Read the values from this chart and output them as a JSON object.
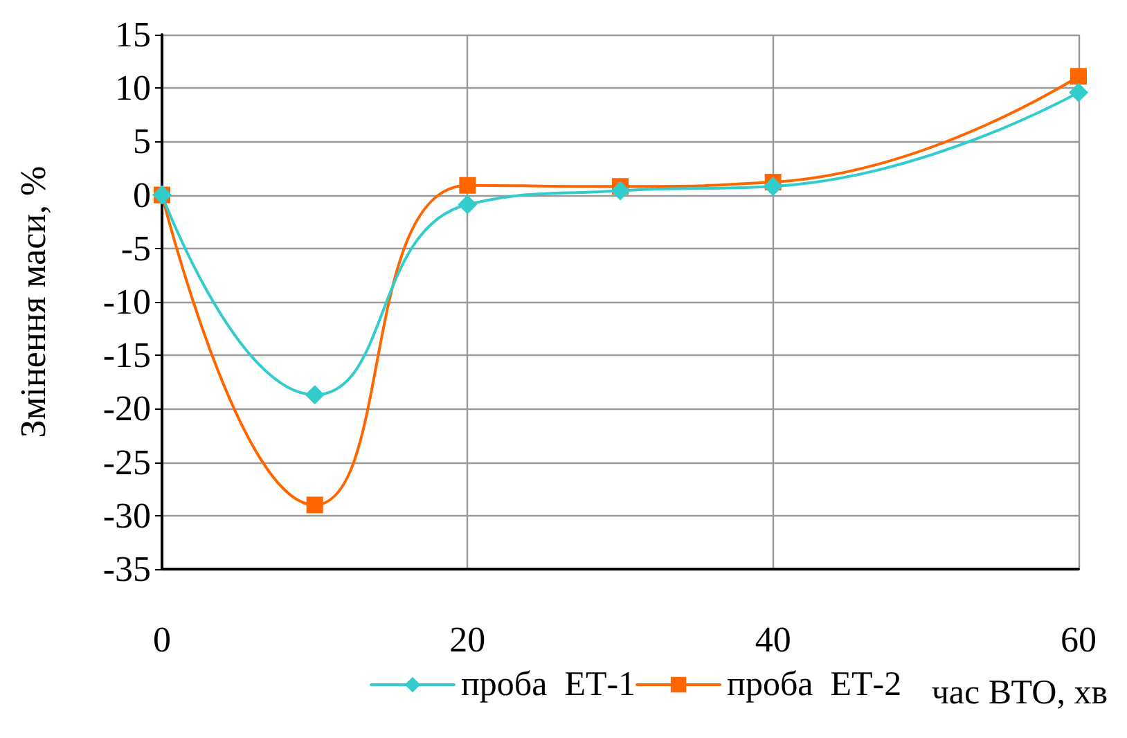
{
  "chart_data": {
    "type": "line",
    "xlabel": "час ВТО, хв",
    "ylabel": "Змінення маси, %",
    "x": [
      0,
      10,
      20,
      30,
      40,
      60
    ],
    "series": [
      {
        "name": "проба  ЕТ-1",
        "color": "#33cccc",
        "marker": "diamond",
        "values": [
          0,
          -18.7,
          -0.9,
          0.4,
          0.8,
          9.6
        ]
      },
      {
        "name": "проба  ЕТ-2",
        "color": "#ff6600",
        "marker": "square",
        "values": [
          0,
          -29,
          0.9,
          0.8,
          1.2,
          11.1
        ]
      }
    ],
    "xlim": [
      0,
      60
    ],
    "xticks": [
      0,
      20,
      40,
      60
    ],
    "ylim": [
      -35,
      15
    ],
    "yticks": [
      -35,
      -30,
      -25,
      -20,
      -15,
      -10,
      -5,
      0,
      5,
      10,
      15
    ],
    "grid": true,
    "legend": "bottom left",
    "line_style": "solid"
  }
}
